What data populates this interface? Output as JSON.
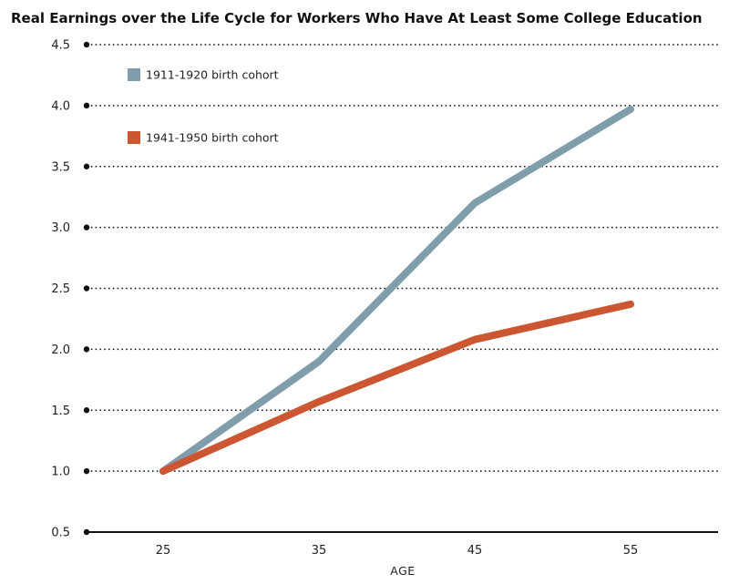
{
  "chart_data": {
    "type": "line",
    "title": "Real Earnings over the Life Cycle for Workers Who Have At Least Some College Education",
    "xlabel": "AGE",
    "ylabel": "",
    "x": [
      25,
      35,
      45,
      55
    ],
    "x_tick_labels": [
      "25",
      "35",
      "45",
      "55"
    ],
    "y_tick_labels": [
      "4.5",
      "4.0",
      "3.5",
      "3.0",
      "2.5",
      "2.0",
      "1.5",
      "1.0",
      "0.5"
    ],
    "y_ticks": [
      4.5,
      4.0,
      3.5,
      3.0,
      2.5,
      2.0,
      1.5,
      1.0,
      0.5
    ],
    "ylim": [
      0.5,
      4.5
    ],
    "xlim": [
      20,
      62
    ],
    "grid": true,
    "legend_position": "top-left",
    "series": [
      {
        "name": "1911-1920 birth cohort",
        "color": "#7f9daa",
        "values": [
          1.0,
          1.9,
          3.2,
          3.97
        ]
      },
      {
        "name": "1941-1950 birth cohort",
        "color": "#cc5532",
        "values": [
          1.0,
          1.57,
          2.08,
          2.37
        ]
      }
    ]
  }
}
